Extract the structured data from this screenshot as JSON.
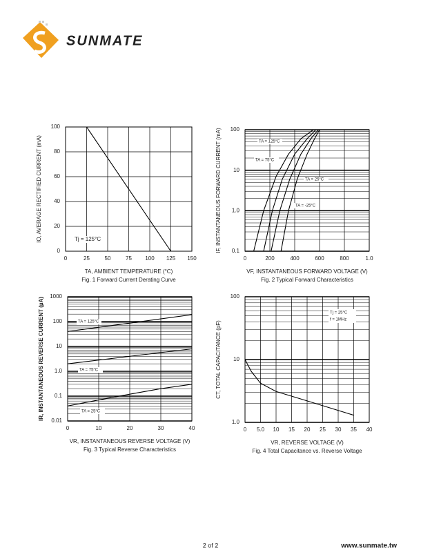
{
  "header": {
    "logo_text": "SUNMATE"
  },
  "footer": {
    "page": "2 of 2",
    "website": "www.sunmate.tw"
  },
  "chart_data": [
    {
      "type": "line",
      "caption": "Fig. 1  Forward Current Derating Curve",
      "xlabel": "TA, AMBIENT TEMPERATURE (°C)",
      "ylabel": "IO, AVERAGE RECTIFIED CURRENT (mA)",
      "xlim": [
        0,
        150
      ],
      "xticks": [
        0,
        25,
        50,
        75,
        100,
        125,
        150
      ],
      "ylim": [
        0,
        100
      ],
      "yticks": [
        0,
        20,
        40,
        60,
        80,
        100
      ],
      "ylog": false,
      "grid": true,
      "series": [
        {
          "color": "#000000",
          "x": [
            0,
            25,
            125
          ],
          "values": [
            100,
            100,
            0
          ]
        }
      ],
      "annotations": [
        "Tj = 125°C"
      ]
    },
    {
      "type": "line",
      "caption": "Fig. 2  Typical Forward Characteristics",
      "xlabel": "VF, INSTANTANEOUS FORWARD VOLTAGE (V)",
      "ylabel": "IF, INSTANTANEOUS FORWARD CURRENT (mA)",
      "xlim": [
        0,
        1
      ],
      "xticks": [
        0,
        {
          "value": 0.2,
          "label": "200"
        },
        {
          "value": 0.4,
          "label": "400"
        },
        {
          "value": 0.6,
          "label": "600"
        },
        {
          "value": 0.8,
          "label": "800"
        },
        {
          "value": 1,
          "label": "1.0"
        }
      ],
      "ylim": [
        0.1,
        100
      ],
      "yticks": [
        0.1,
        {
          "value": 1,
          "label": "1.0"
        },
        10,
        100
      ],
      "ylog": true,
      "grid": true,
      "series": [
        {
          "name": "TA = 125°C",
          "color": "#000000",
          "x": [
            0.07,
            0.15,
            0.25,
            0.35,
            0.45,
            0.55
          ],
          "values": [
            0.1,
            1,
            7,
            25,
            60,
            100
          ]
        },
        {
          "name": "TA = 75°C",
          "color": "#000000",
          "x": [
            0.15,
            0.22,
            0.3,
            0.4,
            0.5,
            0.57
          ],
          "values": [
            0.1,
            1,
            6,
            25,
            60,
            100
          ]
        },
        {
          "name": "TA = 25°C",
          "color": "#000000",
          "x": [
            0.21,
            0.28,
            0.36,
            0.45,
            0.53,
            0.59
          ],
          "values": [
            0.1,
            1,
            6,
            25,
            60,
            100
          ]
        },
        {
          "name": "TA = -25°C",
          "color": "#000000",
          "x": [
            0.29,
            0.35,
            0.42,
            0.5,
            0.56,
            0.6
          ],
          "values": [
            0.1,
            1,
            6,
            25,
            60,
            100
          ]
        }
      ],
      "annotations": []
    },
    {
      "type": "line",
      "caption": "Fig. 3  Typical Reverse Characteristics",
      "xlabel": "VR, INSTANTANEOUS REVERSE VOLTAGE (V)",
      "ylabel": "IR, INSTANTANEOUS REVERSE CURRENT (µA)",
      "xlim": [
        0,
        40
      ],
      "xticks": [
        0,
        10,
        20,
        30,
        40
      ],
      "ylim": [
        0.01,
        1000
      ],
      "yticks": [
        0.01,
        0.1,
        {
          "value": 1,
          "label": "1.0"
        },
        10,
        100,
        1000
      ],
      "ylog": true,
      "grid": true,
      "series": [
        {
          "name": "TA = 125°C",
          "color": "#000000",
          "x": [
            0,
            40
          ],
          "values": [
            40,
            190
          ]
        },
        {
          "name": "TA = 75°C",
          "color": "#000000",
          "x": [
            0,
            40
          ],
          "values": [
            2,
            8
          ]
        },
        {
          "name": "TA = 25°C",
          "color": "#000000",
          "x": [
            0,
            10,
            20,
            30,
            40
          ],
          "values": [
            0.04,
            0.07,
            0.12,
            0.2,
            0.3
          ]
        }
      ],
      "annotations": []
    },
    {
      "type": "line",
      "caption": "Fig. 4  Total Capacitance vs. Reverse Voltage",
      "xlabel": "VR, REVERSE VOLTAGE (V)",
      "ylabel": "CT, TOTAL CAPACITANCE (pF)",
      "xlim": [
        0,
        40
      ],
      "xticks": [
        0,
        {
          "value": 5,
          "label": "5.0"
        },
        10,
        15,
        20,
        25,
        30,
        35,
        40
      ],
      "ylim": [
        1,
        100
      ],
      "yticks": [
        {
          "value": 1,
          "label": "1.0"
        },
        10,
        100
      ],
      "ylog": true,
      "grid": true,
      "series": [
        {
          "color": "#000000",
          "x": [
            0,
            2,
            5,
            10,
            20,
            35
          ],
          "values": [
            10,
            6.5,
            4.2,
            3.1,
            2.2,
            1.3
          ]
        }
      ],
      "annotations": [
        "Tj = 25°C",
        "f = 1MHz"
      ]
    }
  ]
}
